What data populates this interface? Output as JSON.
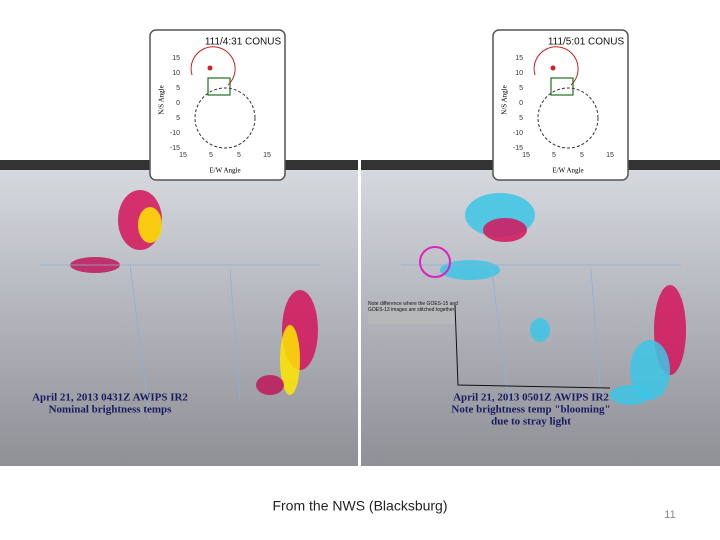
{
  "slide": {
    "caption": "From the NWS (Blacksburg)",
    "page_number": "11"
  },
  "panels": [
    {
      "inset": {
        "title": "111/4:31 CONUS",
        "y_label": "N/S Angle",
        "x_label": "E/W Angle",
        "y_ticks": [
          "15",
          "10",
          "5",
          "0",
          "5",
          "-10",
          "-15"
        ],
        "x_ticks": [
          "15",
          "5",
          "5",
          "15"
        ]
      },
      "image_text": [
        "April 21, 2013 0431Z AWIPS IR2",
        "Nominal brightness temps"
      ]
    },
    {
      "inset": {
        "title": "111/5:01 CONUS",
        "y_label": "N/S Angle",
        "x_label": "E/W Angle",
        "y_ticks": [
          "15",
          "10",
          "5",
          "0",
          "5",
          "-10",
          "-15"
        ],
        "x_ticks": [
          "15",
          "5",
          "5",
          "15"
        ]
      },
      "image_text": [
        "April 21, 2013 0501Z AWIPS IR2",
        "Note brightness temp \"blooming\"",
        "due to stray light"
      ],
      "annotation": "Note difference where the GOES-15 and GOES-13 images are stitched together"
    }
  ]
}
